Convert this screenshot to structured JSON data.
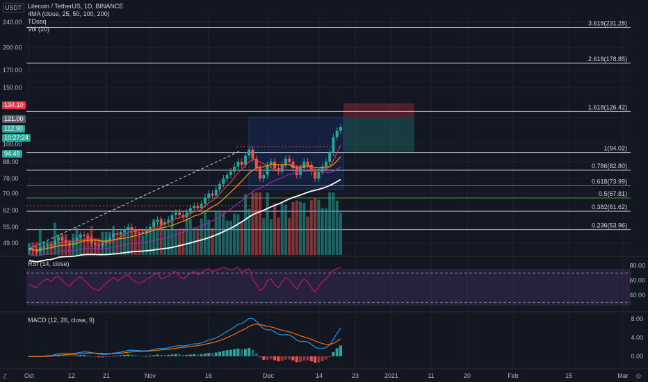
{
  "currency": "USDT",
  "legend": {
    "symbol": "Litecoin / TetherUS, 1D, BINANCE",
    "ma": "4MA (close, 25, 50, 100, 200)",
    "td": "TDseq",
    "vol": "Vol (20)"
  },
  "rsi_label": "RSI (14, close)",
  "macd_label": "MACD (12, 26, close, 9)",
  "price_tags": [
    {
      "text": "134.10",
      "color": "#f23645"
    },
    {
      "text": "121.00",
      "color": "#5d606b"
    },
    {
      "text": "112.90",
      "color": "#26a69a"
    },
    {
      "text": "10:27:24",
      "color": "#26a69a"
    },
    {
      "text": "94.49",
      "color": "#26a69a"
    }
  ],
  "chart_data": [
    {
      "type": "candlestick",
      "y_ticks": [
        "240.00",
        "200.00",
        "170.00",
        "150.00",
        "121.00",
        "100.00",
        "88.00",
        "78.00",
        "70.00",
        "62.00",
        "55.00",
        "49.00"
      ],
      "x_ticks": [
        "Oct",
        "12",
        "21",
        "Nov",
        "16",
        "Dec",
        "14",
        "23",
        "2021",
        "11",
        "20",
        "Feb",
        "15",
        "Mar"
      ],
      "fib_levels": [
        {
          "label": "3.618(231.28)",
          "value": 231.28,
          "color": "#d1d4dc"
        },
        {
          "label": "2.618(178.85)",
          "value": 178.85,
          "color": "#d1d4dc"
        },
        {
          "label": "1.618(126.42)",
          "value": 126.42,
          "color": "#d1d4dc"
        },
        {
          "label": "1(94.02)",
          "value": 94.02,
          "color": "#d1d4dc"
        },
        {
          "label": "0.786(82.80)",
          "value": 82.8,
          "color": "#d1d4dc"
        },
        {
          "label": "0.618(73.99)",
          "value": 73.99,
          "color": "#4caf50"
        },
        {
          "label": "0.5(67.81)",
          "value": 67.81,
          "color": "#4caf50"
        },
        {
          "label": "0.382(61.62)",
          "value": 61.62,
          "color": "#d1d4dc"
        },
        {
          "label": "0.236(53.96)",
          "value": 53.96,
          "color": "#d1d4dc"
        }
      ],
      "closes": [
        47,
        46.5,
        46,
        47.5,
        48,
        48.5,
        48,
        50,
        51,
        50,
        49,
        48.5,
        49.5,
        51,
        52,
        51.5,
        50.5,
        49,
        48.5,
        48,
        49,
        50,
        51,
        52.5,
        52,
        53,
        54,
        55,
        54,
        53,
        52.5,
        53,
        54,
        55,
        57,
        58,
        56,
        57,
        58,
        60,
        61,
        60,
        59,
        61,
        63,
        64,
        63,
        65,
        68,
        70,
        69,
        72,
        75,
        78,
        80,
        82,
        85,
        88,
        86,
        92,
        96,
        90,
        84,
        78,
        80,
        86,
        88,
        84,
        82,
        86,
        90,
        88,
        84,
        80,
        84,
        88,
        86,
        82,
        78,
        82,
        85,
        88,
        94,
        105,
        110,
        112.9
      ],
      "sma_lines": [
        {
          "name": "MA25",
          "color": "#f23645"
        },
        {
          "name": "MA50",
          "color": "#ff9800"
        },
        {
          "name": "MA100",
          "color": "#9c27b0"
        },
        {
          "name": "MA200",
          "color": "#ffffff"
        }
      ]
    },
    {
      "type": "line",
      "y_ticks": [
        "80.00",
        "60.00",
        "40.00"
      ],
      "rsi_values": [
        55,
        52,
        50,
        56,
        60,
        62,
        58,
        64,
        66,
        60,
        55,
        52,
        58,
        62,
        65,
        60,
        56,
        50,
        48,
        46,
        52,
        56,
        60,
        64,
        60,
        62,
        66,
        68,
        62,
        58,
        56,
        58,
        62,
        64,
        68,
        70,
        62,
        64,
        66,
        70,
        72,
        66,
        62,
        66,
        70,
        72,
        68,
        70,
        74,
        76,
        72,
        74,
        76,
        78,
        76,
        74,
        76,
        78,
        70,
        74,
        76,
        62,
        54,
        46,
        50,
        60,
        62,
        54,
        50,
        58,
        64,
        60,
        54,
        48,
        56,
        62,
        58,
        50,
        44,
        52,
        58,
        62,
        68,
        74,
        76,
        78
      ],
      "ylim": [
        20,
        90
      ]
    },
    {
      "type": "bar",
      "y_ticks": [
        "8.00",
        "4.00",
        "0.00"
      ],
      "ylim": [
        -2.5,
        9
      ]
    }
  ]
}
